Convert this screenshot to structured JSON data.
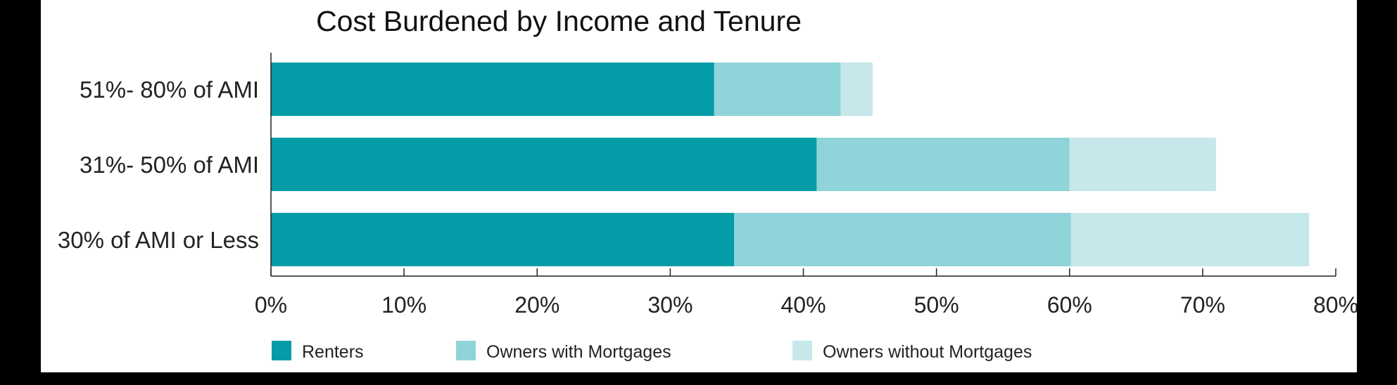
{
  "chart_data": {
    "type": "bar",
    "orientation": "horizontal",
    "stacked": true,
    "title": "Cost Burdened by Income and Tenure",
    "xlabel": "",
    "ylabel": "",
    "xlim": [
      0,
      80
    ],
    "x_ticks": [
      "0%",
      "10%",
      "20%",
      "30%",
      "40%",
      "50%",
      "60%",
      "70%",
      "80%"
    ],
    "x_tick_values": [
      0,
      10,
      20,
      30,
      40,
      50,
      60,
      70,
      80
    ],
    "categories": [
      "51%- 80% of AMI",
      "31%- 50% of AMI",
      "30% of AMI or Less"
    ],
    "series": [
      {
        "name": "Renters",
        "color": "#039ca7",
        "values": [
          33.3,
          41.0,
          34.8
        ]
      },
      {
        "name": "Owners with Mortgages",
        "color": "#8fd4d8",
        "values": [
          9.5,
          19.0,
          25.3
        ]
      },
      {
        "name": "Owners without Mortgages",
        "color": "#c6e8ea",
        "values": [
          2.4,
          11.0,
          17.9
        ]
      }
    ],
    "grid": false,
    "legend_position": "bottom"
  }
}
